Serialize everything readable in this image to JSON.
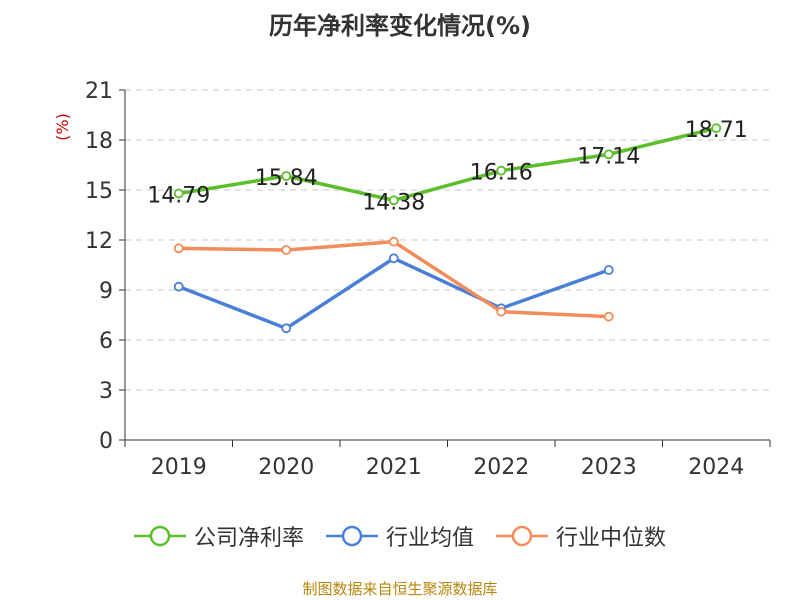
{
  "chart_data": {
    "type": "line",
    "title": "历年净利率变化情况(%)",
    "ylabel": "(%)",
    "categories": [
      "2019",
      "2020",
      "2021",
      "2022",
      "2023",
      "2024"
    ],
    "ylim": [
      0,
      21
    ],
    "yticks": [
      0,
      3,
      6,
      9,
      12,
      15,
      18,
      21
    ],
    "grid": true,
    "legend_position": "bottom",
    "series": [
      {
        "name": "公司净利率",
        "color": "#5cbf2a",
        "values": [
          14.79,
          15.84,
          14.38,
          16.16,
          17.14,
          18.71
        ],
        "show_labels": true
      },
      {
        "name": "行业均值",
        "color": "#4a7fd8",
        "values": [
          9.2,
          6.7,
          10.9,
          7.9,
          10.2,
          null
        ],
        "show_labels": false
      },
      {
        "name": "行业中位数",
        "color": "#f28c5a",
        "values": [
          11.5,
          11.4,
          11.9,
          7.7,
          7.4,
          null
        ],
        "show_labels": false
      }
    ]
  },
  "source_note": "制图数据来自恒生聚源数据库"
}
